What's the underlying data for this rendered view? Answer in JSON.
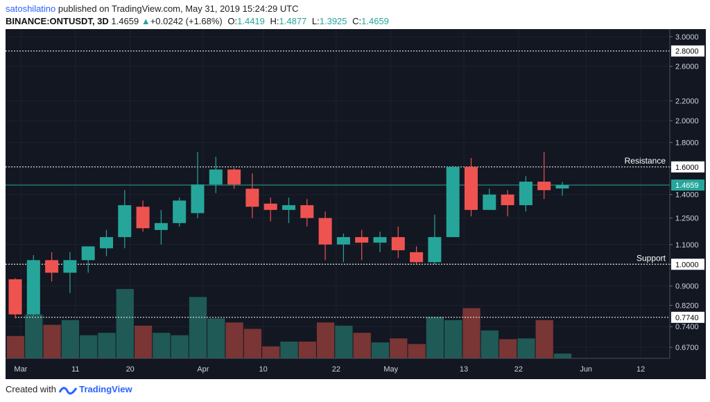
{
  "header": {
    "author": "satoshilatino",
    "published": "published on TradingView.com, May 31, 2019 15:24:29 UTC",
    "symbol": "BINANCE:ONTUSDT, 3D",
    "last": "1.4659",
    "change": "+0.0242 (+1.68%)",
    "open_label": "O:",
    "open": "1.4419",
    "high_label": "H:",
    "high": "1.4877",
    "low_label": "L:",
    "low": "1.3925",
    "close_label": "C:",
    "close": "1.4659"
  },
  "footer": {
    "created_with": "Created with",
    "brand": "TradingView"
  },
  "colors": {
    "background": "#131722",
    "up": "#26a69a",
    "down": "#ef5350",
    "volume_up": "#1f5a56",
    "volume_down": "#7a3535",
    "grid": "#1e2230",
    "text": "#cfd3dc"
  },
  "chart_data": {
    "type": "candlestick",
    "yscale": "log",
    "ylim": [
      0.65,
      3.05
    ],
    "y_ticks": [
      "3.0000",
      "2.6000",
      "2.2000",
      "2.0000",
      "1.8000",
      "1.6000",
      "1.4000",
      "1.2500",
      "1.1000",
      "1.0000",
      "0.9000",
      "0.8200",
      "0.7400",
      "0.6700"
    ],
    "y_tick_values": [
      3.0,
      2.6,
      2.2,
      2.0,
      1.8,
      1.6,
      1.4,
      1.25,
      1.1,
      1.0,
      0.9,
      0.82,
      0.74,
      0.67
    ],
    "x_ticks": [
      {
        "label": "Mar",
        "index": 0.3
      },
      {
        "label": "11",
        "index": 3.3
      },
      {
        "label": "20",
        "index": 6.3
      },
      {
        "label": "Apr",
        "index": 10.3
      },
      {
        "label": "10",
        "index": 13.6
      },
      {
        "label": "22",
        "index": 17.6
      },
      {
        "label": "May",
        "index": 20.6
      },
      {
        "label": "13",
        "index": 24.6
      },
      {
        "label": "22",
        "index": 27.6
      },
      {
        "label": "Jun",
        "index": 31.3
      },
      {
        "label": "12",
        "index": 34.3
      }
    ],
    "candles": [
      {
        "o": 0.93,
        "h": 0.935,
        "l": 0.77,
        "c": 0.785,
        "v": 0.28
      },
      {
        "o": 0.785,
        "h": 1.045,
        "l": 0.78,
        "c": 1.02,
        "v": 0.55
      },
      {
        "o": 1.02,
        "h": 1.06,
        "l": 0.92,
        "c": 0.96,
        "v": 0.42
      },
      {
        "o": 0.96,
        "h": 1.06,
        "l": 0.87,
        "c": 1.02,
        "v": 0.48
      },
      {
        "o": 1.02,
        "h": 1.09,
        "l": 0.96,
        "c": 1.09,
        "v": 0.29
      },
      {
        "o": 1.08,
        "h": 1.18,
        "l": 1.04,
        "c": 1.14,
        "v": 0.32
      },
      {
        "o": 1.14,
        "h": 1.43,
        "l": 1.08,
        "c": 1.33,
        "v": 0.87
      },
      {
        "o": 1.32,
        "h": 1.36,
        "l": 1.17,
        "c": 1.19,
        "v": 0.41
      },
      {
        "o": 1.18,
        "h": 1.3,
        "l": 1.1,
        "c": 1.22,
        "v": 0.32
      },
      {
        "o": 1.22,
        "h": 1.38,
        "l": 1.2,
        "c": 1.36,
        "v": 0.29
      },
      {
        "o": 1.28,
        "h": 1.72,
        "l": 1.25,
        "c": 1.47,
        "v": 0.77
      },
      {
        "o": 1.47,
        "h": 1.68,
        "l": 1.41,
        "c": 1.58,
        "v": 0.5
      },
      {
        "o": 1.58,
        "h": 1.59,
        "l": 1.44,
        "c": 1.47,
        "v": 0.45
      },
      {
        "o": 1.44,
        "h": 1.55,
        "l": 1.25,
        "c": 1.32,
        "v": 0.37
      },
      {
        "o": 1.34,
        "h": 1.38,
        "l": 1.23,
        "c": 1.3,
        "v": 0.15
      },
      {
        "o": 1.3,
        "h": 1.38,
        "l": 1.22,
        "c": 1.33,
        "v": 0.21
      },
      {
        "o": 1.33,
        "h": 1.37,
        "l": 1.2,
        "c": 1.25,
        "v": 0.21
      },
      {
        "o": 1.25,
        "h": 1.29,
        "l": 1.02,
        "c": 1.1,
        "v": 0.45
      },
      {
        "o": 1.1,
        "h": 1.16,
        "l": 1.01,
        "c": 1.14,
        "v": 0.41
      },
      {
        "o": 1.14,
        "h": 1.18,
        "l": 1.02,
        "c": 1.11,
        "v": 0.32
      },
      {
        "o": 1.11,
        "h": 1.17,
        "l": 1.06,
        "c": 1.14,
        "v": 0.2
      },
      {
        "o": 1.14,
        "h": 1.2,
        "l": 1.03,
        "c": 1.07,
        "v": 0.25
      },
      {
        "o": 1.06,
        "h": 1.09,
        "l": 1.0,
        "c": 1.01,
        "v": 0.18
      },
      {
        "o": 1.01,
        "h": 1.27,
        "l": 1.0,
        "c": 1.14,
        "v": 0.52
      },
      {
        "o": 1.14,
        "h": 1.61,
        "l": 1.14,
        "c": 1.6,
        "v": 0.48
      },
      {
        "o": 1.6,
        "h": 1.67,
        "l": 1.26,
        "c": 1.3,
        "v": 0.63
      },
      {
        "o": 1.3,
        "h": 1.44,
        "l": 1.3,
        "c": 1.4,
        "v": 0.35
      },
      {
        "o": 1.4,
        "h": 1.43,
        "l": 1.26,
        "c": 1.33,
        "v": 0.24
      },
      {
        "o": 1.33,
        "h": 1.53,
        "l": 1.29,
        "c": 1.49,
        "v": 0.25
      },
      {
        "o": 1.49,
        "h": 1.72,
        "l": 1.37,
        "c": 1.43,
        "v": 0.48
      },
      {
        "o": 1.4419,
        "h": 1.4877,
        "l": 1.3925,
        "c": 1.4659,
        "v": 0.06
      }
    ],
    "levels": [
      {
        "value": 2.8,
        "label": "2.8000",
        "text": ""
      },
      {
        "value": 1.6,
        "label": "1.6000",
        "text": "Resistance"
      },
      {
        "value": 1.0,
        "label": "1.0000",
        "text": "Support"
      },
      {
        "value": 0.774,
        "label": "0.7740",
        "text": ""
      }
    ],
    "last_price": {
      "value": 1.4659,
      "label": "1.4659"
    }
  }
}
